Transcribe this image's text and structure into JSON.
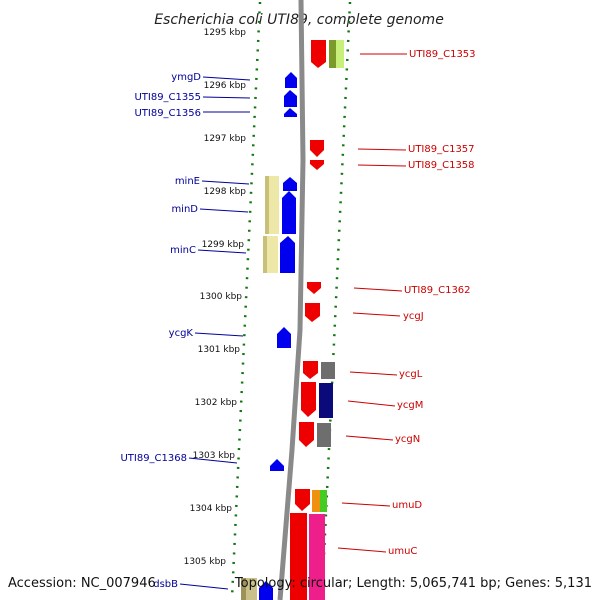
{
  "title": "Escherichia coli UTI89, complete genome",
  "footer": {
    "accession": "Accession: NC_007946",
    "topology": "Topology: circular; Length: 5,065,741 bp; Genes: 5,131"
  },
  "colors": {
    "forward_gene": "#0000ee",
    "reverse_gene": "#ee0000",
    "backbone": "#8a8a8a",
    "ruler_tick": "#117711",
    "label_forward": "#000099",
    "label_reverse": "#cc0000"
  },
  "kbp_labels": [
    "1295 kbp",
    "1296 kbp",
    "1297 kbp",
    "1298 kbp",
    "1299 kbp",
    "1300 kbp",
    "1301 kbp",
    "1302 kbp",
    "1303 kbp",
    "1304 kbp",
    "1305 kbp"
  ],
  "left_labels": [
    "ymgD",
    "UTI89_C1355",
    "UTI89_C1356",
    "minE",
    "minD",
    "minC",
    "ycgK",
    "UTI89_C1368",
    "dsbB"
  ],
  "right_labels": [
    "UTI89_C1353",
    "UTI89_C1357",
    "UTI89_C1358",
    "UTI89_C1362",
    "ycgJ",
    "ycgL",
    "ycgM",
    "ycgN",
    "umuD",
    "umuC"
  ]
}
